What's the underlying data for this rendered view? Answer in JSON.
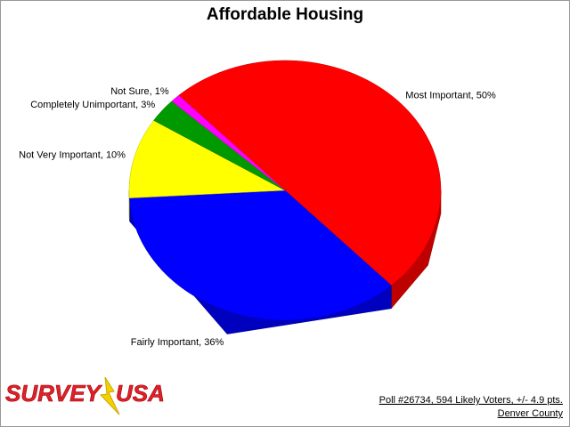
{
  "chart_data": {
    "type": "pie3d",
    "title": "Affordable Housing",
    "values": [
      50,
      36,
      10,
      3,
      1
    ],
    "value_labels": [
      "Most Important, 50%",
      "Fairly Important, 36%",
      "Not Very Important, 10%",
      "Completely Unimportant, 3%",
      "Not Sure, 1%"
    ],
    "colors": [
      "#ff0000",
      "#0000ff",
      "#ffff00",
      "#009900",
      "#ff00ff"
    ],
    "footer": [
      "Poll #26734, 594 Likely Voters, +/- 4.9 pts.",
      "Denver County"
    ],
    "logo": [
      "SURVEY",
      "USA"
    ]
  }
}
